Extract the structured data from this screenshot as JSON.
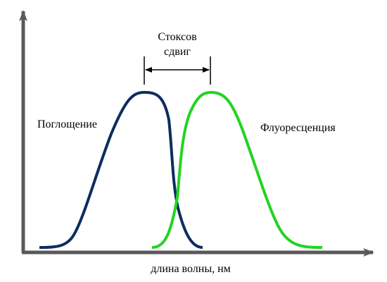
{
  "labels": {
    "stokes_line1": "Стоксов",
    "stokes_line2": "сдвиг",
    "absorption": "Поглощение",
    "fluorescence": "Флуоресценция",
    "x_axis": "длина волны, нм"
  },
  "colors": {
    "axis": "#595959",
    "absorption": "#0d2d5e",
    "fluorescence": "#22d422",
    "text": "#000000"
  }
}
